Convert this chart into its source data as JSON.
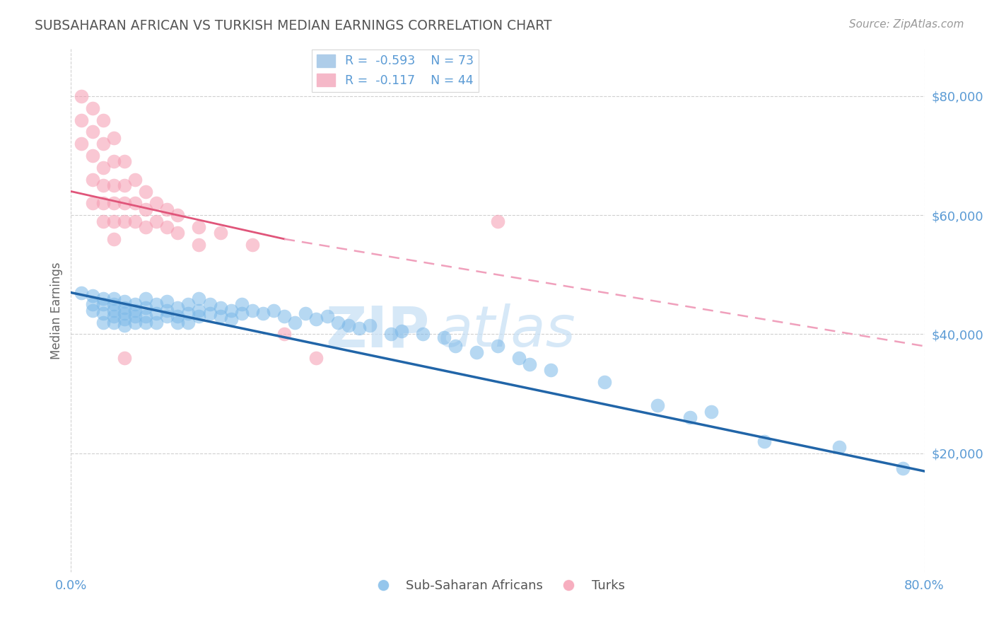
{
  "title": "SUBSAHARAN AFRICAN VS TURKISH MEDIAN EARNINGS CORRELATION CHART",
  "source_text": "Source: ZipAtlas.com",
  "ylabel": "Median Earnings",
  "xlim": [
    0.0,
    0.8
  ],
  "ylim": [
    0,
    88000
  ],
  "yticks": [
    20000,
    40000,
    60000,
    80000
  ],
  "ytick_labels": [
    "$20,000",
    "$40,000",
    "$60,000",
    "$80,000"
  ],
  "xtick_labels": [
    "0.0%",
    "80.0%"
  ],
  "watermark_top": "ZIP",
  "watermark_bot": "atlas",
  "blue_color": "#7bb8e8",
  "pink_color": "#f59ab0",
  "blue_line_color": "#2165a8",
  "pink_line_color": "#e0557a",
  "pink_dash_color": "#f0a0bc",
  "blue_scatter": [
    [
      0.01,
      47000
    ],
    [
      0.02,
      46500
    ],
    [
      0.02,
      45000
    ],
    [
      0.02,
      44000
    ],
    [
      0.03,
      46000
    ],
    [
      0.03,
      45000
    ],
    [
      0.03,
      43500
    ],
    [
      0.03,
      42000
    ],
    [
      0.04,
      46000
    ],
    [
      0.04,
      45000
    ],
    [
      0.04,
      44000
    ],
    [
      0.04,
      43000
    ],
    [
      0.04,
      42000
    ],
    [
      0.05,
      45500
    ],
    [
      0.05,
      44500
    ],
    [
      0.05,
      43500
    ],
    [
      0.05,
      42500
    ],
    [
      0.05,
      41500
    ],
    [
      0.06,
      45000
    ],
    [
      0.06,
      44000
    ],
    [
      0.06,
      43000
    ],
    [
      0.06,
      42000
    ],
    [
      0.07,
      46000
    ],
    [
      0.07,
      44500
    ],
    [
      0.07,
      43000
    ],
    [
      0.07,
      42000
    ],
    [
      0.08,
      45000
    ],
    [
      0.08,
      43500
    ],
    [
      0.08,
      42000
    ],
    [
      0.09,
      45500
    ],
    [
      0.09,
      44000
    ],
    [
      0.09,
      43000
    ],
    [
      0.1,
      44500
    ],
    [
      0.1,
      43000
    ],
    [
      0.1,
      42000
    ],
    [
      0.11,
      45000
    ],
    [
      0.11,
      43500
    ],
    [
      0.11,
      42000
    ],
    [
      0.12,
      46000
    ],
    [
      0.12,
      44000
    ],
    [
      0.12,
      43000
    ],
    [
      0.13,
      45000
    ],
    [
      0.13,
      43500
    ],
    [
      0.14,
      44500
    ],
    [
      0.14,
      43000
    ],
    [
      0.15,
      44000
    ],
    [
      0.15,
      42500
    ],
    [
      0.16,
      45000
    ],
    [
      0.16,
      43500
    ],
    [
      0.17,
      44000
    ],
    [
      0.18,
      43500
    ],
    [
      0.19,
      44000
    ],
    [
      0.2,
      43000
    ],
    [
      0.21,
      42000
    ],
    [
      0.22,
      43500
    ],
    [
      0.23,
      42500
    ],
    [
      0.24,
      43000
    ],
    [
      0.25,
      42000
    ],
    [
      0.26,
      41500
    ],
    [
      0.27,
      41000
    ],
    [
      0.28,
      41500
    ],
    [
      0.3,
      40000
    ],
    [
      0.31,
      40500
    ],
    [
      0.33,
      40000
    ],
    [
      0.35,
      39500
    ],
    [
      0.36,
      38000
    ],
    [
      0.38,
      37000
    ],
    [
      0.4,
      38000
    ],
    [
      0.42,
      36000
    ],
    [
      0.43,
      35000
    ],
    [
      0.45,
      34000
    ],
    [
      0.5,
      32000
    ],
    [
      0.55,
      28000
    ],
    [
      0.58,
      26000
    ],
    [
      0.6,
      27000
    ],
    [
      0.65,
      22000
    ],
    [
      0.72,
      21000
    ],
    [
      0.78,
      17500
    ]
  ],
  "pink_scatter": [
    [
      0.01,
      80000
    ],
    [
      0.01,
      76000
    ],
    [
      0.01,
      72000
    ],
    [
      0.02,
      78000
    ],
    [
      0.02,
      74000
    ],
    [
      0.02,
      70000
    ],
    [
      0.02,
      66000
    ],
    [
      0.02,
      62000
    ],
    [
      0.03,
      76000
    ],
    [
      0.03,
      72000
    ],
    [
      0.03,
      68000
    ],
    [
      0.03,
      65000
    ],
    [
      0.03,
      62000
    ],
    [
      0.03,
      59000
    ],
    [
      0.04,
      73000
    ],
    [
      0.04,
      69000
    ],
    [
      0.04,
      65000
    ],
    [
      0.04,
      62000
    ],
    [
      0.04,
      59000
    ],
    [
      0.04,
      56000
    ],
    [
      0.05,
      69000
    ],
    [
      0.05,
      65000
    ],
    [
      0.05,
      62000
    ],
    [
      0.05,
      59000
    ],
    [
      0.06,
      66000
    ],
    [
      0.06,
      62000
    ],
    [
      0.06,
      59000
    ],
    [
      0.07,
      64000
    ],
    [
      0.07,
      61000
    ],
    [
      0.07,
      58000
    ],
    [
      0.08,
      62000
    ],
    [
      0.08,
      59000
    ],
    [
      0.09,
      61000
    ],
    [
      0.09,
      58000
    ],
    [
      0.1,
      60000
    ],
    [
      0.1,
      57000
    ],
    [
      0.12,
      58000
    ],
    [
      0.12,
      55000
    ],
    [
      0.14,
      57000
    ],
    [
      0.17,
      55000
    ],
    [
      0.2,
      40000
    ],
    [
      0.23,
      36000
    ],
    [
      0.4,
      59000
    ],
    [
      0.05,
      36000
    ]
  ],
  "background_color": "#ffffff",
  "grid_color": "#d0d0d0",
  "title_color": "#555555",
  "axis_label_color": "#666666",
  "tick_label_color": "#5b9bd5",
  "source_color": "#999999"
}
